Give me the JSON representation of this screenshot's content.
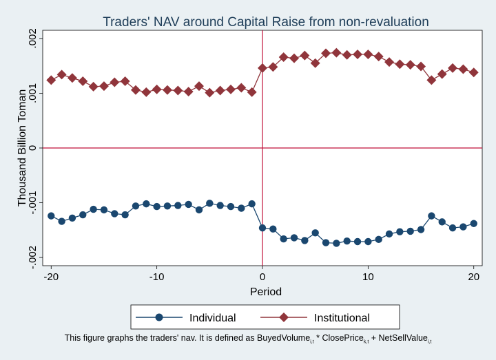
{
  "chart_data": {
    "type": "line",
    "title": "Traders' NAV around Capital Raise from non-revaluation",
    "xlabel": "Period",
    "ylabel": "Thousand Billion Toman",
    "xlim": [
      -20.8,
      20.8
    ],
    "ylim": [
      -0.00215,
      0.00215
    ],
    "x_ticks": [
      -20,
      -10,
      0,
      10,
      20
    ],
    "x_tick_labels": [
      "-20",
      "-10",
      "0",
      "10",
      "20"
    ],
    "y_ticks": [
      -0.002,
      -0.001,
      0,
      0.001,
      0.002
    ],
    "y_tick_labels": [
      "-.002",
      "-.001",
      "0",
      ".001",
      ".002"
    ],
    "reference_lines": {
      "x": 0,
      "y": 0,
      "color": "#c0103a"
    },
    "grid": false,
    "legend_position": "bottom",
    "x": [
      -20,
      -19,
      -18,
      -17,
      -16,
      -15,
      -14,
      -13,
      -12,
      -11,
      -10,
      -9,
      -8,
      -7,
      -6,
      -5,
      -4,
      -3,
      -2,
      -1,
      0,
      1,
      2,
      3,
      4,
      5,
      6,
      7,
      8,
      9,
      10,
      11,
      12,
      13,
      14,
      15,
      16,
      17,
      18,
      19,
      20
    ],
    "series": [
      {
        "name": "Individual",
        "marker": "circle",
        "color": "#1a476f",
        "values": [
          -0.00124,
          -0.00134,
          -0.00128,
          -0.00122,
          -0.00112,
          -0.00113,
          -0.0012,
          -0.00122,
          -0.00106,
          -0.00102,
          -0.00107,
          -0.00106,
          -0.00105,
          -0.00103,
          -0.00113,
          -0.00101,
          -0.00105,
          -0.00107,
          -0.0011,
          -0.00102,
          -0.00146,
          -0.00148,
          -0.00166,
          -0.00164,
          -0.00169,
          -0.00155,
          -0.00173,
          -0.00174,
          -0.0017,
          -0.00171,
          -0.00171,
          -0.00167,
          -0.00157,
          -0.00153,
          -0.00152,
          -0.00149,
          -0.00124,
          -0.00135,
          -0.00146,
          -0.00144,
          -0.00138
        ]
      },
      {
        "name": "Institutional",
        "marker": "diamond",
        "color": "#90353b",
        "values": [
          0.00124,
          0.00134,
          0.00128,
          0.00122,
          0.00112,
          0.00113,
          0.0012,
          0.00122,
          0.00106,
          0.00102,
          0.00107,
          0.00106,
          0.00105,
          0.00103,
          0.00113,
          0.00101,
          0.00105,
          0.00107,
          0.0011,
          0.00102,
          0.00146,
          0.00148,
          0.00166,
          0.00164,
          0.00169,
          0.00155,
          0.00173,
          0.00174,
          0.0017,
          0.00171,
          0.00171,
          0.00167,
          0.00157,
          0.00153,
          0.00152,
          0.00149,
          0.00124,
          0.00135,
          0.00146,
          0.00144,
          0.00138
        ]
      }
    ],
    "caption": {
      "prefix": "This figure graphs the traders' nav. It is defined as BuyedVolume",
      "sub1": "i,t",
      "mid1": " * ClosePrice",
      "sub2": "k,t",
      "mid2": " + NetSellValue",
      "sub3": "i,t"
    }
  }
}
